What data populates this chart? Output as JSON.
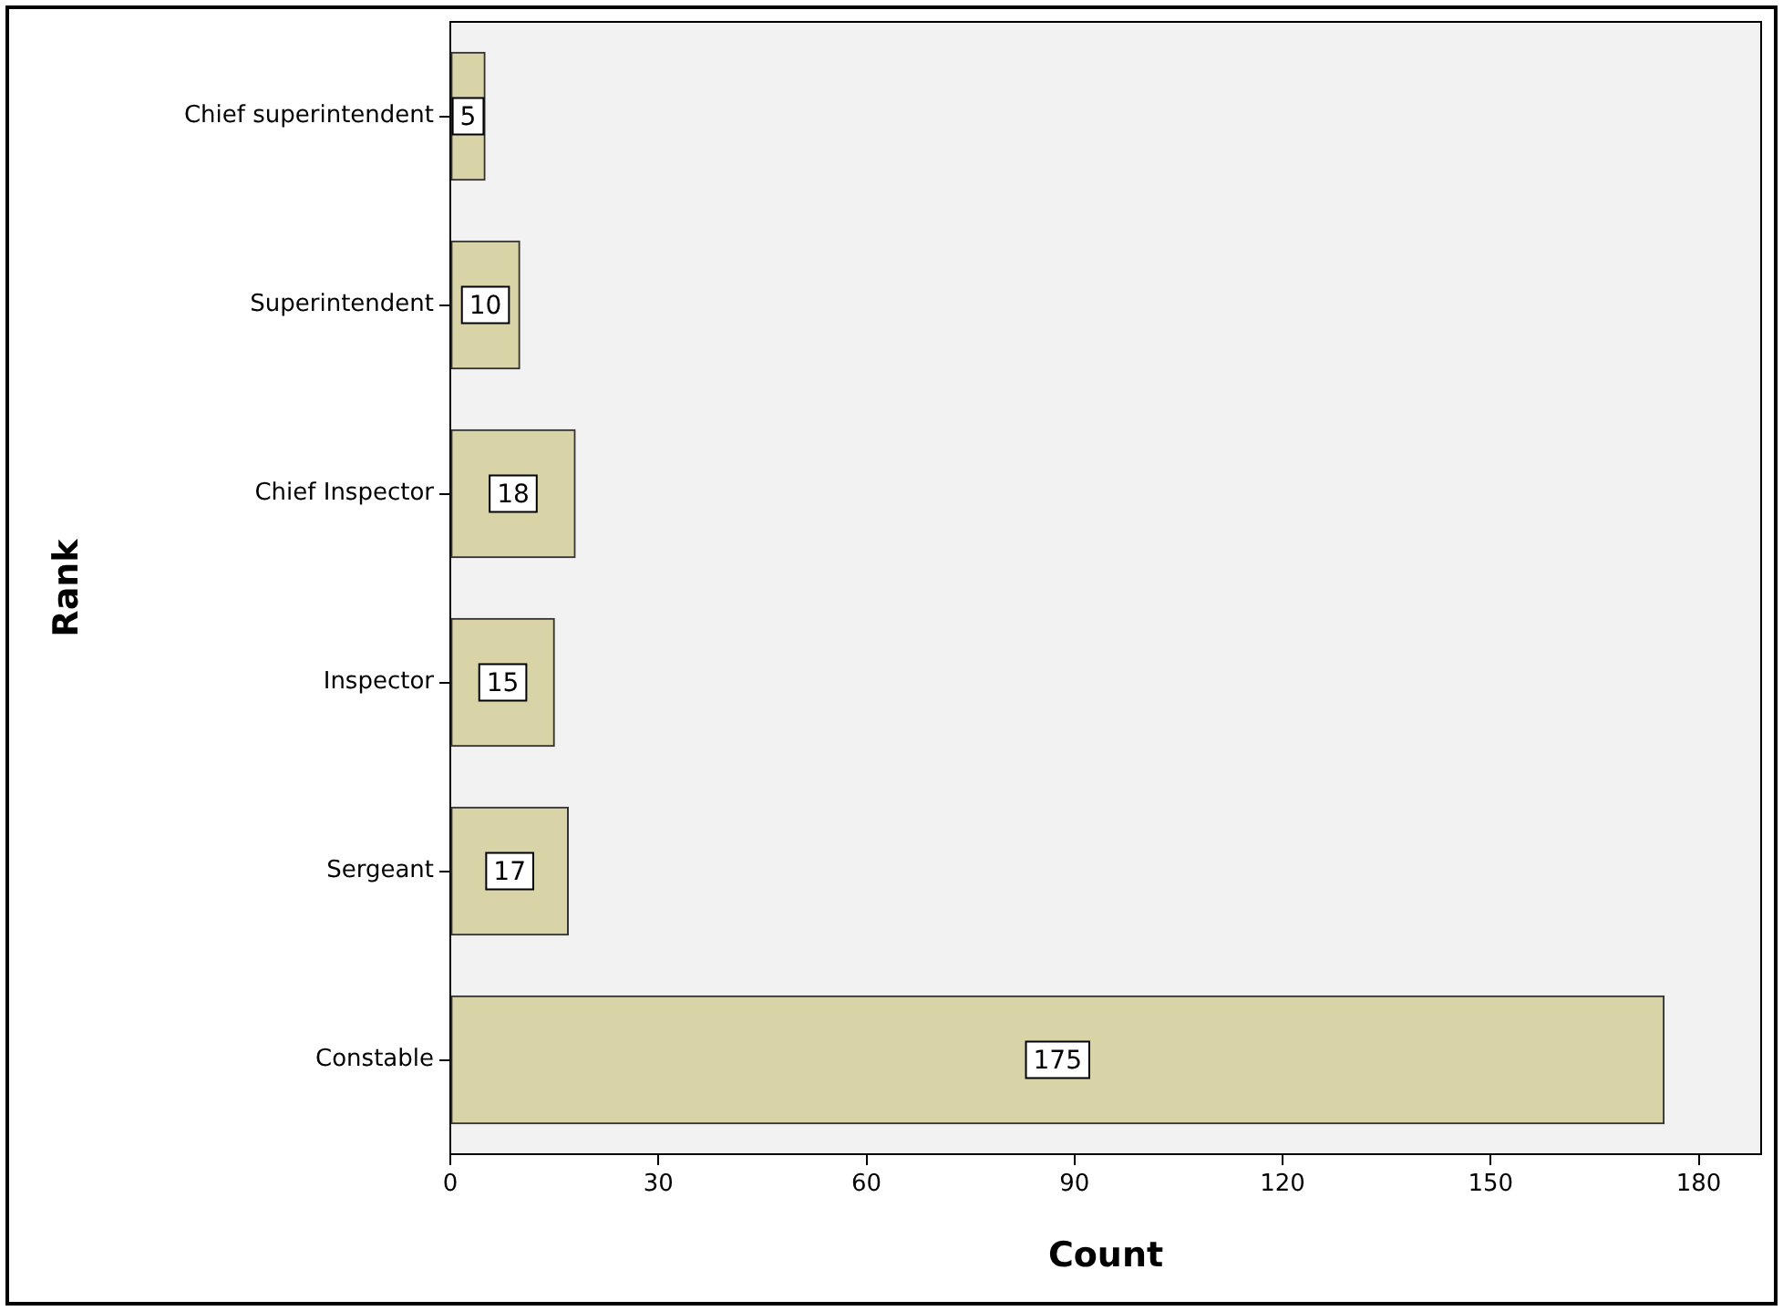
{
  "chart_data": {
    "type": "bar",
    "orientation": "horizontal",
    "xlabel": "Count",
    "ylabel": "Rank",
    "categories": [
      "Chief superintendent",
      "Superintendent",
      "Chief Inspector",
      "Inspector",
      "Sergeant",
      "Constable"
    ],
    "values": [
      5,
      10,
      18,
      15,
      17,
      175
    ],
    "color": "#d9d3a8",
    "xlim": [
      0,
      189
    ],
    "xticks": [
      0,
      30,
      60,
      90,
      120,
      150,
      180
    ],
    "grid": false,
    "legend": false,
    "data_labels": true
  }
}
